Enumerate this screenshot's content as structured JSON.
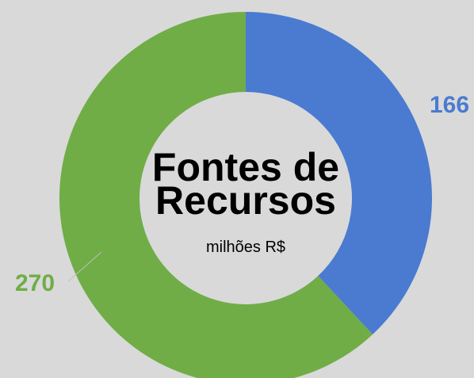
{
  "chart_data": {
    "type": "donut",
    "title": [
      "Fontes de",
      "Recursos"
    ],
    "subtitle": "milhões R$",
    "values": [
      166,
      270
    ],
    "colors": [
      "#4a7bd0",
      "#70ad47"
    ]
  }
}
